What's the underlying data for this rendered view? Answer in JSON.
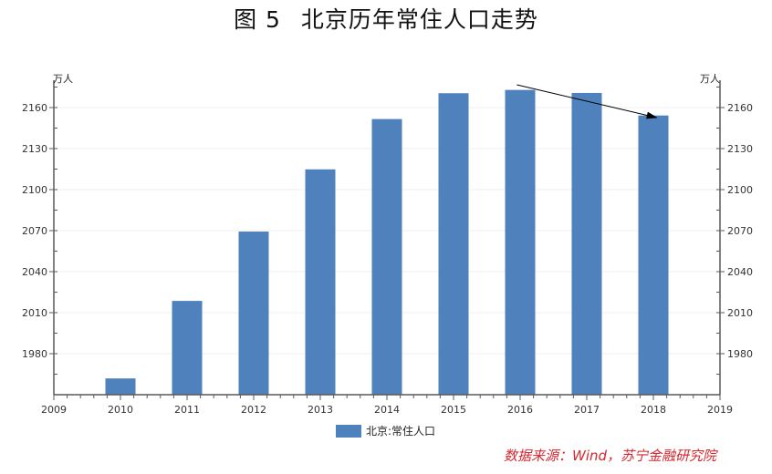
{
  "title": {
    "figure_no": "图 5",
    "text": "北京历年常住人口走势"
  },
  "axes": {
    "left_unit": "万人",
    "right_unit": "万人",
    "y_ticks": [
      1980,
      2010,
      2040,
      2070,
      2100,
      2130,
      2160
    ],
    "x_ticks": [
      "2009",
      "2010",
      "2011",
      "2012",
      "2013",
      "2014",
      "2015",
      "2016",
      "2017",
      "2018",
      "2019"
    ]
  },
  "legend": {
    "label": "北京:常住人口"
  },
  "source": "数据来源：Wind，苏宁金融研究院",
  "colors": {
    "bar": "#4f81bd",
    "source_text": "#d4272e",
    "axis": "#595959",
    "arrow": "#000000"
  },
  "chart_data": {
    "type": "bar",
    "title": "图5 北京历年常住人口走势",
    "xlabel": "",
    "ylabel": "万人",
    "categories": [
      "2010",
      "2011",
      "2012",
      "2013",
      "2014",
      "2015",
      "2016",
      "2017",
      "2018"
    ],
    "series": [
      {
        "name": "北京:常住人口",
        "values": [
          1961.9,
          2018.6,
          2069.3,
          2114.8,
          2151.6,
          2170.5,
          2172.9,
          2170.7,
          2154.2
        ]
      }
    ],
    "xlim": [
      2009,
      2019
    ],
    "ylim": [
      1950,
      2180
    ],
    "y_ticks": [
      1980,
      2010,
      2040,
      2070,
      2100,
      2130,
      2160
    ],
    "secondary_y_axis": {
      "label": "万人",
      "ylim": [
        1950,
        2180
      ]
    },
    "grid": "horizontal, light",
    "legend_position": "bottom",
    "annotations": [
      {
        "type": "arrow",
        "description": "downward trend arrow from 2016 peak toward 2018",
        "from": [
          2015.95,
          2176
        ],
        "to": [
          2018.05,
          2158
        ]
      }
    ],
    "source": "数据来源：Wind，苏宁金融研究院"
  }
}
